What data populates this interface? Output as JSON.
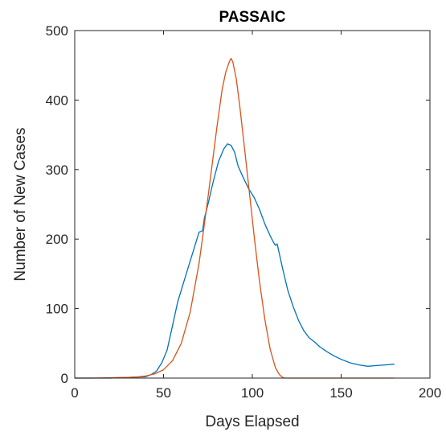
{
  "chart_data": {
    "type": "line",
    "title": "PASSAIC",
    "xlabel": "Days Elapsed",
    "ylabel": "Number of New Cases",
    "xlim": [
      0,
      200
    ],
    "ylim": [
      0,
      500
    ],
    "xticks": [
      0,
      50,
      100,
      150,
      200
    ],
    "yticks": [
      0,
      100,
      200,
      300,
      400,
      500
    ],
    "grid": false,
    "legend": "none",
    "series": [
      {
        "color": "#0072BD",
        "x": [
          0,
          20,
          40,
          43,
          46,
          49,
          52,
          55,
          58,
          61,
          64,
          67,
          70,
          72,
          73,
          75,
          78,
          81,
          84,
          86,
          88,
          90,
          92,
          95,
          98,
          101,
          104,
          107,
          110,
          112,
          113,
          114,
          117,
          120,
          123,
          126,
          129,
          132,
          135,
          138,
          142,
          146,
          150,
          155,
          160,
          165,
          170,
          175,
          180
        ],
        "y": [
          0,
          0,
          2,
          5,
          10,
          22,
          40,
          75,
          110,
          135,
          160,
          185,
          210,
          212,
          230,
          250,
          283,
          312,
          330,
          337,
          335,
          325,
          305,
          288,
          272,
          260,
          243,
          222,
          205,
          195,
          191,
          193,
          158,
          126,
          103,
          83,
          68,
          58,
          52,
          45,
          38,
          32,
          27,
          22,
          19,
          17,
          18,
          19,
          20
        ]
      },
      {
        "color": "#D95319",
        "x": [
          0,
          10,
          20,
          25,
          30,
          35,
          40,
          45,
          50,
          55,
          60,
          65,
          70,
          75,
          80,
          83,
          85,
          87,
          88,
          89,
          91,
          93,
          95,
          98,
          101,
          104,
          107,
          110,
          113,
          115,
          116,
          117,
          118,
          120,
          140,
          160,
          180
        ],
        "y": [
          0,
          0,
          0.5,
          0.8,
          1,
          1.5,
          3,
          6,
          12,
          25,
          50,
          95,
          165,
          260,
          360,
          415,
          440,
          455,
          460,
          455,
          430,
          390,
          345,
          275,
          205,
          140,
          85,
          42,
          15,
          6,
          3,
          1,
          0,
          0,
          0,
          0,
          0
        ]
      }
    ]
  }
}
